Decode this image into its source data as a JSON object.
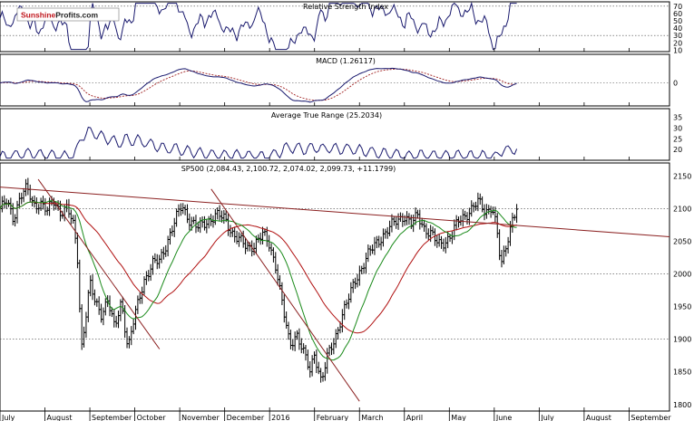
{
  "logo": {
    "part1": "Sunshine",
    "part2": "Profits.com"
  },
  "panels": {
    "rsi": {
      "title": "Relative Strength Index",
      "ticks": [
        70,
        60,
        50,
        40,
        30,
        20,
        10
      ],
      "levels": [
        70,
        30
      ]
    },
    "macd": {
      "title": "MACD (1.26117)",
      "ticks": [
        0
      ]
    },
    "atr": {
      "title": "Average True Range (25.2034)",
      "ticks": [
        35,
        30,
        25,
        20
      ]
    },
    "price": {
      "title": "SP500 (2,084.43, 2,100.72, 2,074.02, 2,099.73, +11.1799)",
      "ticks": [
        2150,
        2100,
        2050,
        2000,
        1950,
        1900,
        1850,
        1800
      ],
      "levels": [
        2100,
        2000,
        1900
      ]
    }
  },
  "x_axis": {
    "labels": [
      "July",
      "August",
      "September",
      "October",
      "November",
      "December",
      "2016",
      "February",
      "March",
      "April",
      "May",
      "June",
      "July",
      "August",
      "September"
    ]
  },
  "chart_data": {
    "type": "ohlc",
    "symbol": "SP500",
    "last_bar": {
      "open": 2084.43,
      "high": 2100.72,
      "low": 2074.02,
      "close": 2099.73,
      "change": 11.1799
    },
    "ylim": [
      1790,
      2170
    ],
    "indicators": {
      "rsi_ylim": [
        8,
        76
      ],
      "macd_value": 1.26117,
      "atr_value": 25.2034,
      "atr_ylim": [
        15,
        39
      ]
    },
    "price_series": [
      {
        "m": 0.0,
        "c": 2100
      },
      {
        "m": 0.15,
        "c": 2110
      },
      {
        "m": 0.3,
        "c": 2085
      },
      {
        "m": 0.45,
        "c": 2120
      },
      {
        "m": 0.6,
        "c": 2130
      },
      {
        "m": 0.75,
        "c": 2105
      },
      {
        "m": 0.9,
        "c": 2110
      },
      {
        "m": 1.05,
        "c": 2095
      },
      {
        "m": 1.2,
        "c": 2112
      },
      {
        "m": 1.35,
        "c": 2095
      },
      {
        "m": 1.5,
        "c": 2100
      },
      {
        "m": 1.65,
        "c": 2070
      },
      {
        "m": 1.75,
        "c": 2010
      },
      {
        "m": 1.8,
        "c": 1880
      },
      {
        "m": 1.9,
        "c": 1930
      },
      {
        "m": 2.0,
        "c": 1985
      },
      {
        "m": 2.1,
        "c": 1960
      },
      {
        "m": 2.25,
        "c": 1940
      },
      {
        "m": 2.4,
        "c": 1960
      },
      {
        "m": 2.55,
        "c": 1915
      },
      {
        "m": 2.7,
        "c": 1960
      },
      {
        "m": 2.85,
        "c": 1885
      },
      {
        "m": 3.0,
        "c": 1935
      },
      {
        "m": 3.2,
        "c": 1990
      },
      {
        "m": 3.4,
        "c": 2015
      },
      {
        "m": 3.55,
        "c": 2020
      },
      {
        "m": 3.75,
        "c": 2055
      },
      {
        "m": 3.95,
        "c": 2090
      },
      {
        "m": 4.05,
        "c": 2105
      },
      {
        "m": 4.2,
        "c": 2085
      },
      {
        "m": 4.4,
        "c": 2070
      },
      {
        "m": 4.6,
        "c": 2080
      },
      {
        "m": 4.8,
        "c": 2090
      },
      {
        "m": 5.0,
        "c": 2085
      },
      {
        "m": 5.2,
        "c": 2060
      },
      {
        "m": 5.35,
        "c": 2050
      },
      {
        "m": 5.5,
        "c": 2040
      },
      {
        "m": 5.65,
        "c": 2045
      },
      {
        "m": 5.85,
        "c": 2060
      },
      {
        "m": 6.0,
        "c": 2045
      },
      {
        "m": 6.15,
        "c": 2010
      },
      {
        "m": 6.3,
        "c": 1945
      },
      {
        "m": 6.45,
        "c": 1890
      },
      {
        "m": 6.6,
        "c": 1910
      },
      {
        "m": 6.75,
        "c": 1880
      },
      {
        "m": 6.9,
        "c": 1850
      },
      {
        "m": 7.0,
        "c": 1880
      },
      {
        "m": 7.15,
        "c": 1835
      },
      {
        "m": 7.3,
        "c": 1875
      },
      {
        "m": 7.45,
        "c": 1900
      },
      {
        "m": 7.6,
        "c": 1935
      },
      {
        "m": 7.75,
        "c": 1960
      },
      {
        "m": 7.9,
        "c": 1990
      },
      {
        "m": 8.05,
        "c": 2010
      },
      {
        "m": 8.2,
        "c": 2030
      },
      {
        "m": 8.4,
        "c": 2050
      },
      {
        "m": 8.6,
        "c": 2065
      },
      {
        "m": 8.8,
        "c": 2080
      },
      {
        "m": 9.0,
        "c": 2090
      },
      {
        "m": 9.15,
        "c": 2075
      },
      {
        "m": 9.3,
        "c": 2090
      },
      {
        "m": 9.45,
        "c": 2070
      },
      {
        "m": 9.6,
        "c": 2060
      },
      {
        "m": 9.75,
        "c": 2045
      },
      {
        "m": 9.9,
        "c": 2050
      },
      {
        "m": 10.05,
        "c": 2060
      },
      {
        "m": 10.2,
        "c": 2080
      },
      {
        "m": 10.35,
        "c": 2090
      },
      {
        "m": 10.5,
        "c": 2100
      },
      {
        "m": 10.65,
        "c": 2110
      },
      {
        "m": 10.8,
        "c": 2095
      },
      {
        "m": 10.95,
        "c": 2105
      },
      {
        "m": 11.05,
        "c": 2070
      },
      {
        "m": 11.15,
        "c": 2010
      },
      {
        "m": 11.25,
        "c": 2040
      },
      {
        "m": 11.4,
        "c": 2085
      },
      {
        "m": 11.5,
        "c": 2100
      }
    ],
    "trendlines": [
      {
        "name": "long-term resistance",
        "color": "#8b2020",
        "points": [
          {
            "m": 0.0,
            "c": 2133
          },
          {
            "m": 14.9,
            "c": 2057
          }
        ]
      },
      {
        "name": "declining line 1",
        "color": "#8b2020",
        "points": [
          {
            "m": 0.85,
            "c": 2145
          },
          {
            "m": 3.55,
            "c": 1885
          }
        ]
      },
      {
        "name": "declining line 2",
        "color": "#8b2020",
        "points": [
          {
            "m": 4.7,
            "c": 2130
          },
          {
            "m": 8.0,
            "c": 1805
          }
        ]
      }
    ],
    "moving_averages": [
      {
        "name": "short",
        "color": "#1a8a1a"
      },
      {
        "name": "long",
        "color": "#b01010"
      }
    ]
  }
}
